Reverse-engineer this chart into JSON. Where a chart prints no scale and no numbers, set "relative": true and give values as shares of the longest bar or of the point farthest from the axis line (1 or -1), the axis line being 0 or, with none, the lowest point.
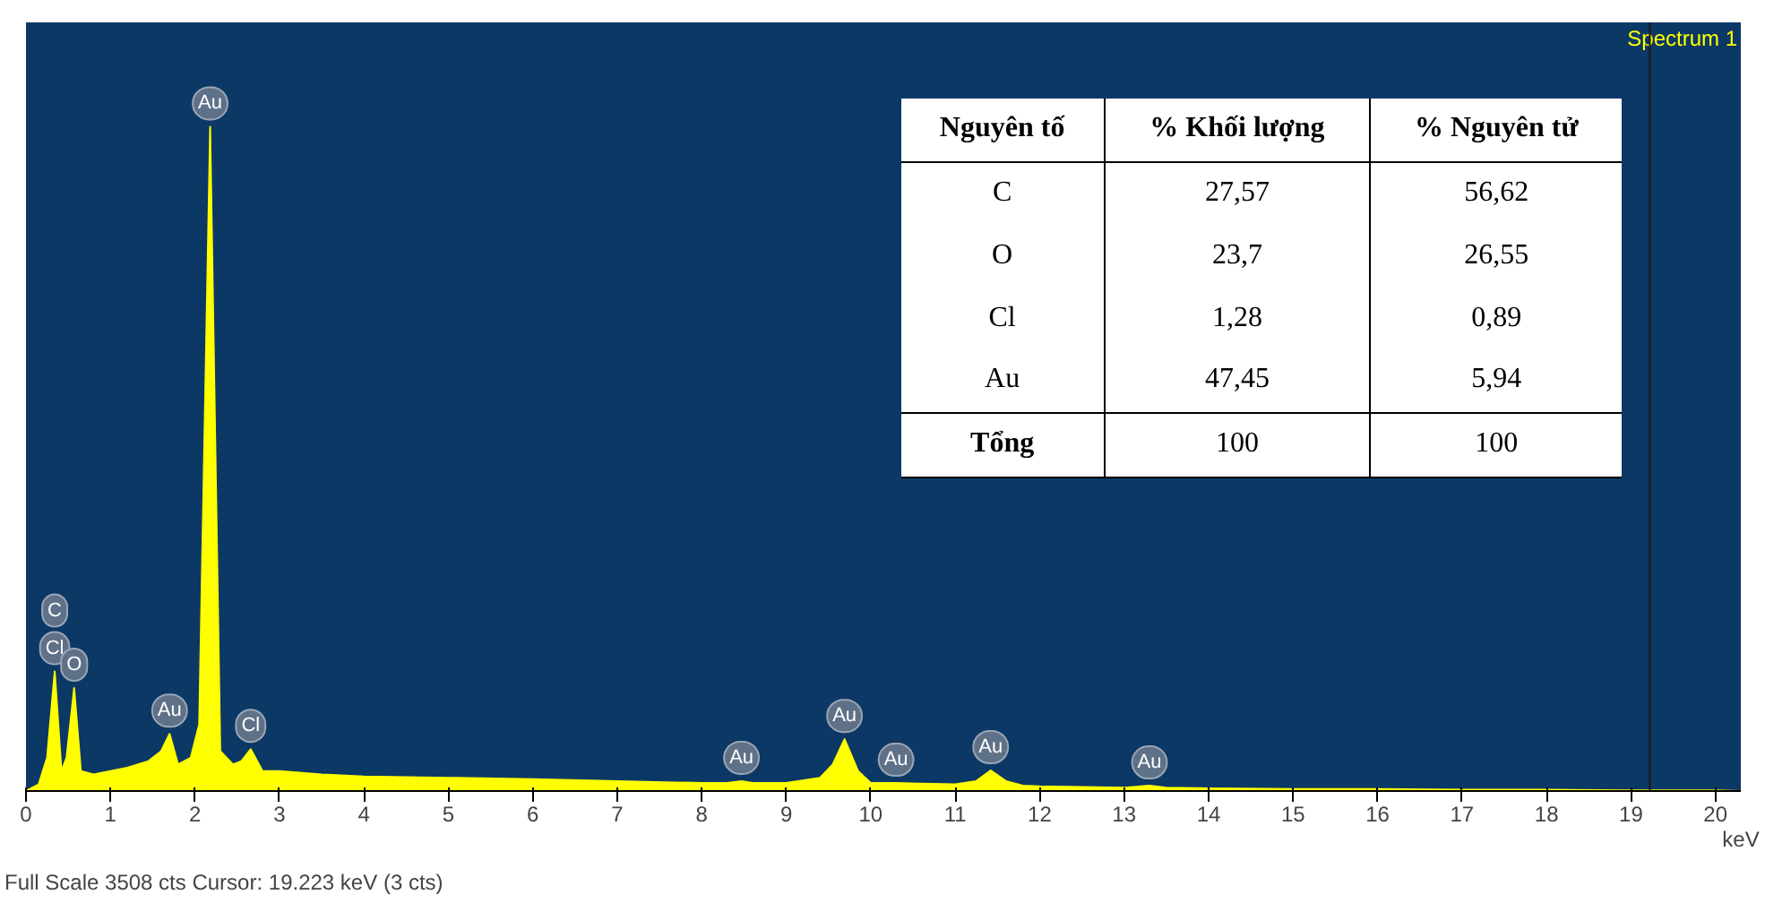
{
  "chart_data": {
    "type": "area",
    "relative": true,
    "xlabel": "keV",
    "xlim": [
      0,
      20.3
    ],
    "xticks": [
      0,
      1,
      2,
      3,
      4,
      5,
      6,
      7,
      8,
      9,
      10,
      11,
      12,
      13,
      14,
      15,
      16,
      17,
      18,
      19,
      20
    ],
    "grid": false,
    "x": [
      0,
      0.15,
      0.25,
      0.34,
      0.42,
      0.48,
      0.57,
      0.65,
      0.8,
      1.0,
      1.2,
      1.45,
      1.6,
      1.7,
      1.8,
      1.95,
      2.05,
      2.18,
      2.3,
      2.45,
      2.55,
      2.66,
      2.8,
      3.0,
      3.5,
      4,
      5,
      6,
      7,
      8,
      8.3,
      8.47,
      8.6,
      9.0,
      9.4,
      9.55,
      9.69,
      9.85,
      10.0,
      10.3,
      10.6,
      11.0,
      11.25,
      11.42,
      11.6,
      11.8,
      12,
      13,
      13.3,
      13.5,
      14,
      15,
      16,
      17,
      18,
      19,
      20,
      20.3
    ],
    "series": [
      {
        "name": "Spectrum 1",
        "color": "#ffff00",
        "values": [
          0,
          0.01,
          0.05,
          0.18,
          0.03,
          0.05,
          0.155,
          0.03,
          0.025,
          0.03,
          0.035,
          0.045,
          0.06,
          0.086,
          0.04,
          0.05,
          0.1,
          1.0,
          0.06,
          0.04,
          0.045,
          0.063,
          0.03,
          0.03,
          0.025,
          0.022,
          0.02,
          0.018,
          0.015,
          0.012,
          0.012,
          0.015,
          0.012,
          0.012,
          0.02,
          0.04,
          0.078,
          0.03,
          0.012,
          0.012,
          0.011,
          0.01,
          0.015,
          0.031,
          0.015,
          0.008,
          0.007,
          0.005,
          0.008,
          0.005,
          0.004,
          0.003,
          0.003,
          0.002,
          0.002,
          0.001,
          0.001,
          0
        ]
      }
    ],
    "ref_lines": [
      {
        "axis": "x",
        "value": 19.223,
        "color": "#1a1a1a"
      }
    ],
    "annotations": [
      {
        "text": "Cl",
        "x": 0.34,
        "y": 0.18
      },
      {
        "text": "C",
        "x": 0.34,
        "y": 0.18
      },
      {
        "text": "O",
        "x": 0.57,
        "y": 0.155
      },
      {
        "text": "Au",
        "x": 1.7,
        "y": 0.086
      },
      {
        "text": "Au",
        "x": 2.18,
        "y": 1.0
      },
      {
        "text": "Cl",
        "x": 2.66,
        "y": 0.063
      },
      {
        "text": "Au",
        "x": 8.47,
        "y": 0.015
      },
      {
        "text": "Au",
        "x": 9.69,
        "y": 0.078
      },
      {
        "text": "Au",
        "x": 10.3,
        "y": 0.012
      },
      {
        "text": "Au",
        "x": 11.42,
        "y": 0.031
      },
      {
        "text": "Au",
        "x": 13.3,
        "y": 0.008
      },
      "Nguyên tố",
      "% Khối lượng",
      "% Nguyên tử",
      "C",
      "27,57",
      "56,62",
      "O",
      "23,7",
      "26,55",
      "Cl",
      "1,28",
      "0,89",
      "Au",
      "47,45",
      "5,94",
      "Tổng",
      "100",
      "100",
      "Full Scale 3508 cts  Cursor: 19.223 keV (3 cts)"
    ]
  }
}
